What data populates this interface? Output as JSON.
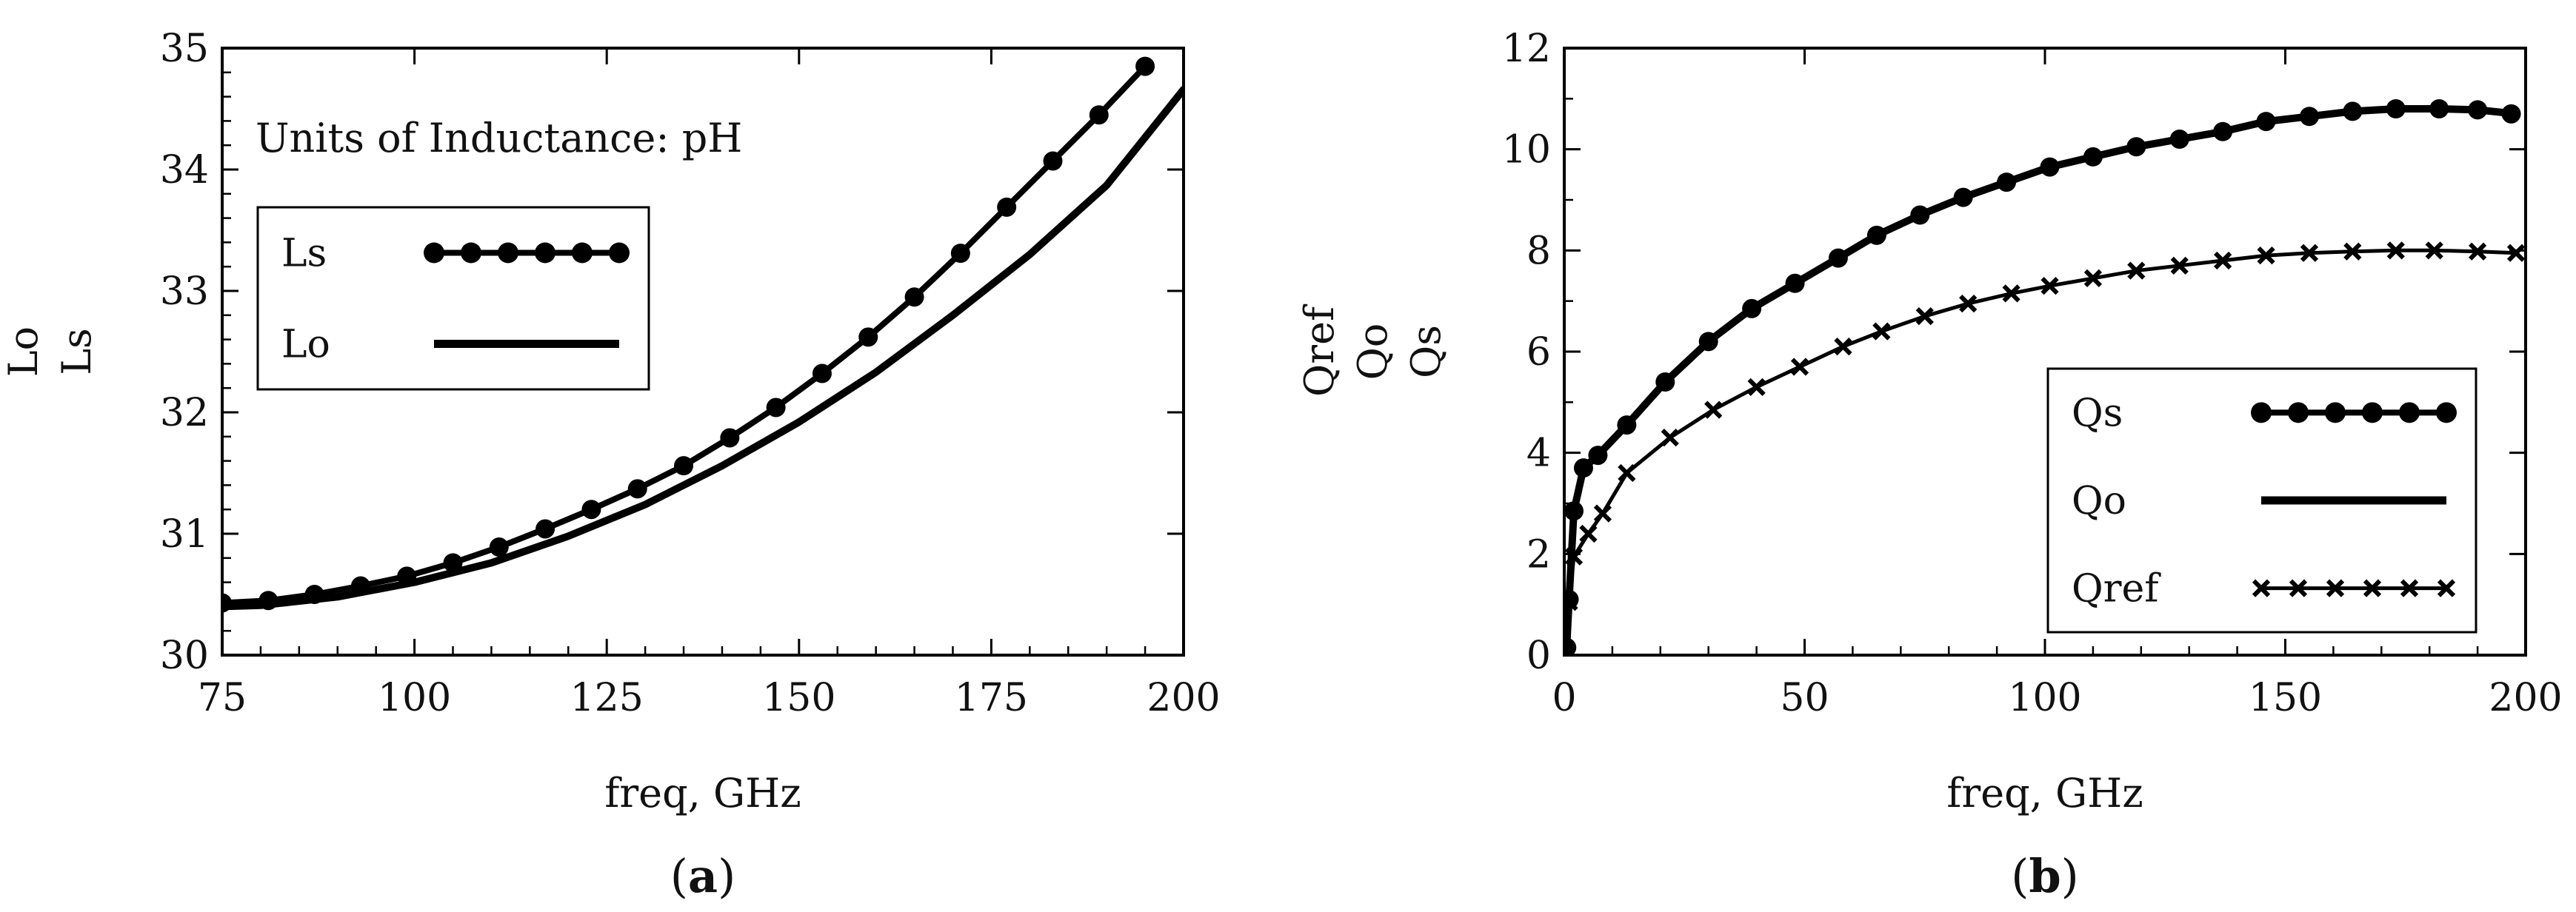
{
  "chart_data": [
    {
      "type": "line",
      "caption_open": "(",
      "caption_letter": "a",
      "caption_close": ")",
      "annotation": "Units of Inductance: pH",
      "xlabel": "freq, GHz",
      "ylabel_lines": [
        "Lo",
        "Ls"
      ],
      "xlim": [
        75,
        200
      ],
      "ylim": [
        30,
        35
      ],
      "xticks": [
        "75",
        "100",
        "125",
        "150",
        "175",
        "200"
      ],
      "yticks": [
        "30",
        "31",
        "32",
        "33",
        "34",
        "35"
      ],
      "legend_position": "upper-left",
      "series": [
        {
          "name": "Ls",
          "marker": "circle",
          "x": [
            75,
            81,
            87,
            93,
            99,
            105,
            111,
            117,
            123,
            129,
            135,
            141,
            147,
            153,
            159,
            165,
            171,
            177,
            183,
            189,
            195
          ],
          "y": [
            30.43,
            30.45,
            30.5,
            30.57,
            30.65,
            30.76,
            30.89,
            31.04,
            31.2,
            31.37,
            31.56,
            31.79,
            32.04,
            32.32,
            32.62,
            32.95,
            33.31,
            33.69,
            34.07,
            34.45,
            34.85
          ]
        },
        {
          "name": "Lo",
          "marker": "none",
          "x": [
            75,
            80,
            90,
            100,
            110,
            120,
            130,
            140,
            150,
            160,
            170,
            180,
            190,
            200
          ],
          "y": [
            30.4,
            30.41,
            30.48,
            30.6,
            30.76,
            30.98,
            31.24,
            31.56,
            31.92,
            32.33,
            32.8,
            33.3,
            33.87,
            34.66
          ]
        }
      ]
    },
    {
      "type": "line",
      "caption_open": "(",
      "caption_letter": "b",
      "caption_close": ")",
      "xlabel": "freq, GHz",
      "ylabel_lines": [
        "Qref",
        "Qo",
        "Qs"
      ],
      "xlim": [
        0,
        200
      ],
      "ylim": [
        0,
        12
      ],
      "xticks": [
        "0",
        "50",
        "100",
        "150",
        "200"
      ],
      "yticks": [
        "0",
        "2",
        "4",
        "6",
        "8",
        "10",
        "12"
      ],
      "legend_position": "lower-right",
      "series": [
        {
          "name": "Qs",
          "marker": "circle",
          "x": [
            0.5,
            1,
            2,
            4,
            7,
            13,
            21,
            30,
            39,
            48,
            57,
            65,
            74,
            83,
            92,
            101,
            110,
            119,
            128,
            137,
            146,
            155,
            164,
            173,
            182,
            190,
            197
          ],
          "y": [
            0.15,
            1.1,
            2.85,
            3.7,
            3.95,
            4.55,
            5.4,
            6.2,
            6.85,
            7.35,
            7.85,
            8.3,
            8.7,
            9.05,
            9.35,
            9.65,
            9.85,
            10.05,
            10.2,
            10.35,
            10.55,
            10.65,
            10.75,
            10.8,
            10.8,
            10.78,
            10.7
          ]
        },
        {
          "name": "Qo",
          "marker": "none",
          "x": [
            0.5,
            1,
            2,
            4,
            7,
            13,
            21,
            30,
            39,
            48,
            57,
            65,
            74,
            83,
            92,
            101,
            110,
            119,
            128,
            137,
            146,
            155,
            164,
            173,
            182,
            190,
            198
          ],
          "y": [
            0.15,
            1.1,
            2.85,
            3.7,
            3.95,
            4.55,
            5.4,
            6.2,
            6.85,
            7.35,
            7.85,
            8.3,
            8.7,
            9.05,
            9.35,
            9.65,
            9.85,
            10.05,
            10.2,
            10.35,
            10.55,
            10.65,
            10.75,
            10.8,
            10.8,
            10.78,
            10.7
          ]
        },
        {
          "name": "Qref",
          "marker": "x",
          "x": [
            1,
            2,
            5,
            8,
            13,
            22,
            31,
            40,
            49,
            58,
            66,
            75,
            84,
            93,
            101,
            110,
            119,
            128,
            137,
            146,
            155,
            164,
            173,
            181,
            190,
            198
          ],
          "y": [
            1.05,
            1.95,
            2.4,
            2.8,
            3.6,
            4.3,
            4.85,
            5.3,
            5.7,
            6.1,
            6.4,
            6.7,
            6.95,
            7.15,
            7.3,
            7.45,
            7.6,
            7.7,
            7.8,
            7.9,
            7.95,
            7.98,
            8.0,
            8.0,
            7.98,
            7.95
          ]
        }
      ]
    }
  ]
}
